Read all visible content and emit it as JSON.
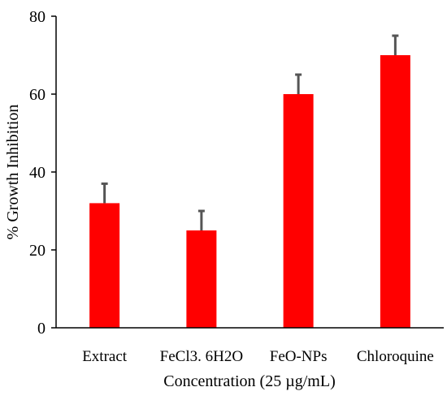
{
  "chart_data": {
    "type": "bar",
    "categories": [
      "Extract",
      "FeCl3. 6H2O",
      "FeO-NPs",
      "Chloroquine"
    ],
    "series": [
      {
        "values": [
          32,
          25,
          60,
          70
        ],
        "error_plus": [
          5,
          5,
          5,
          5
        ],
        "color": "#ff0000"
      }
    ],
    "title": "",
    "xlabel": "Concentration (25 µg/mL)",
    "ylabel": "% Growth Inhibition",
    "ylim": [
      0,
      80
    ],
    "yticks": [
      0,
      20,
      40,
      60,
      80
    ],
    "grid": false,
    "legend": "none",
    "error_bar_color": "#555555"
  }
}
